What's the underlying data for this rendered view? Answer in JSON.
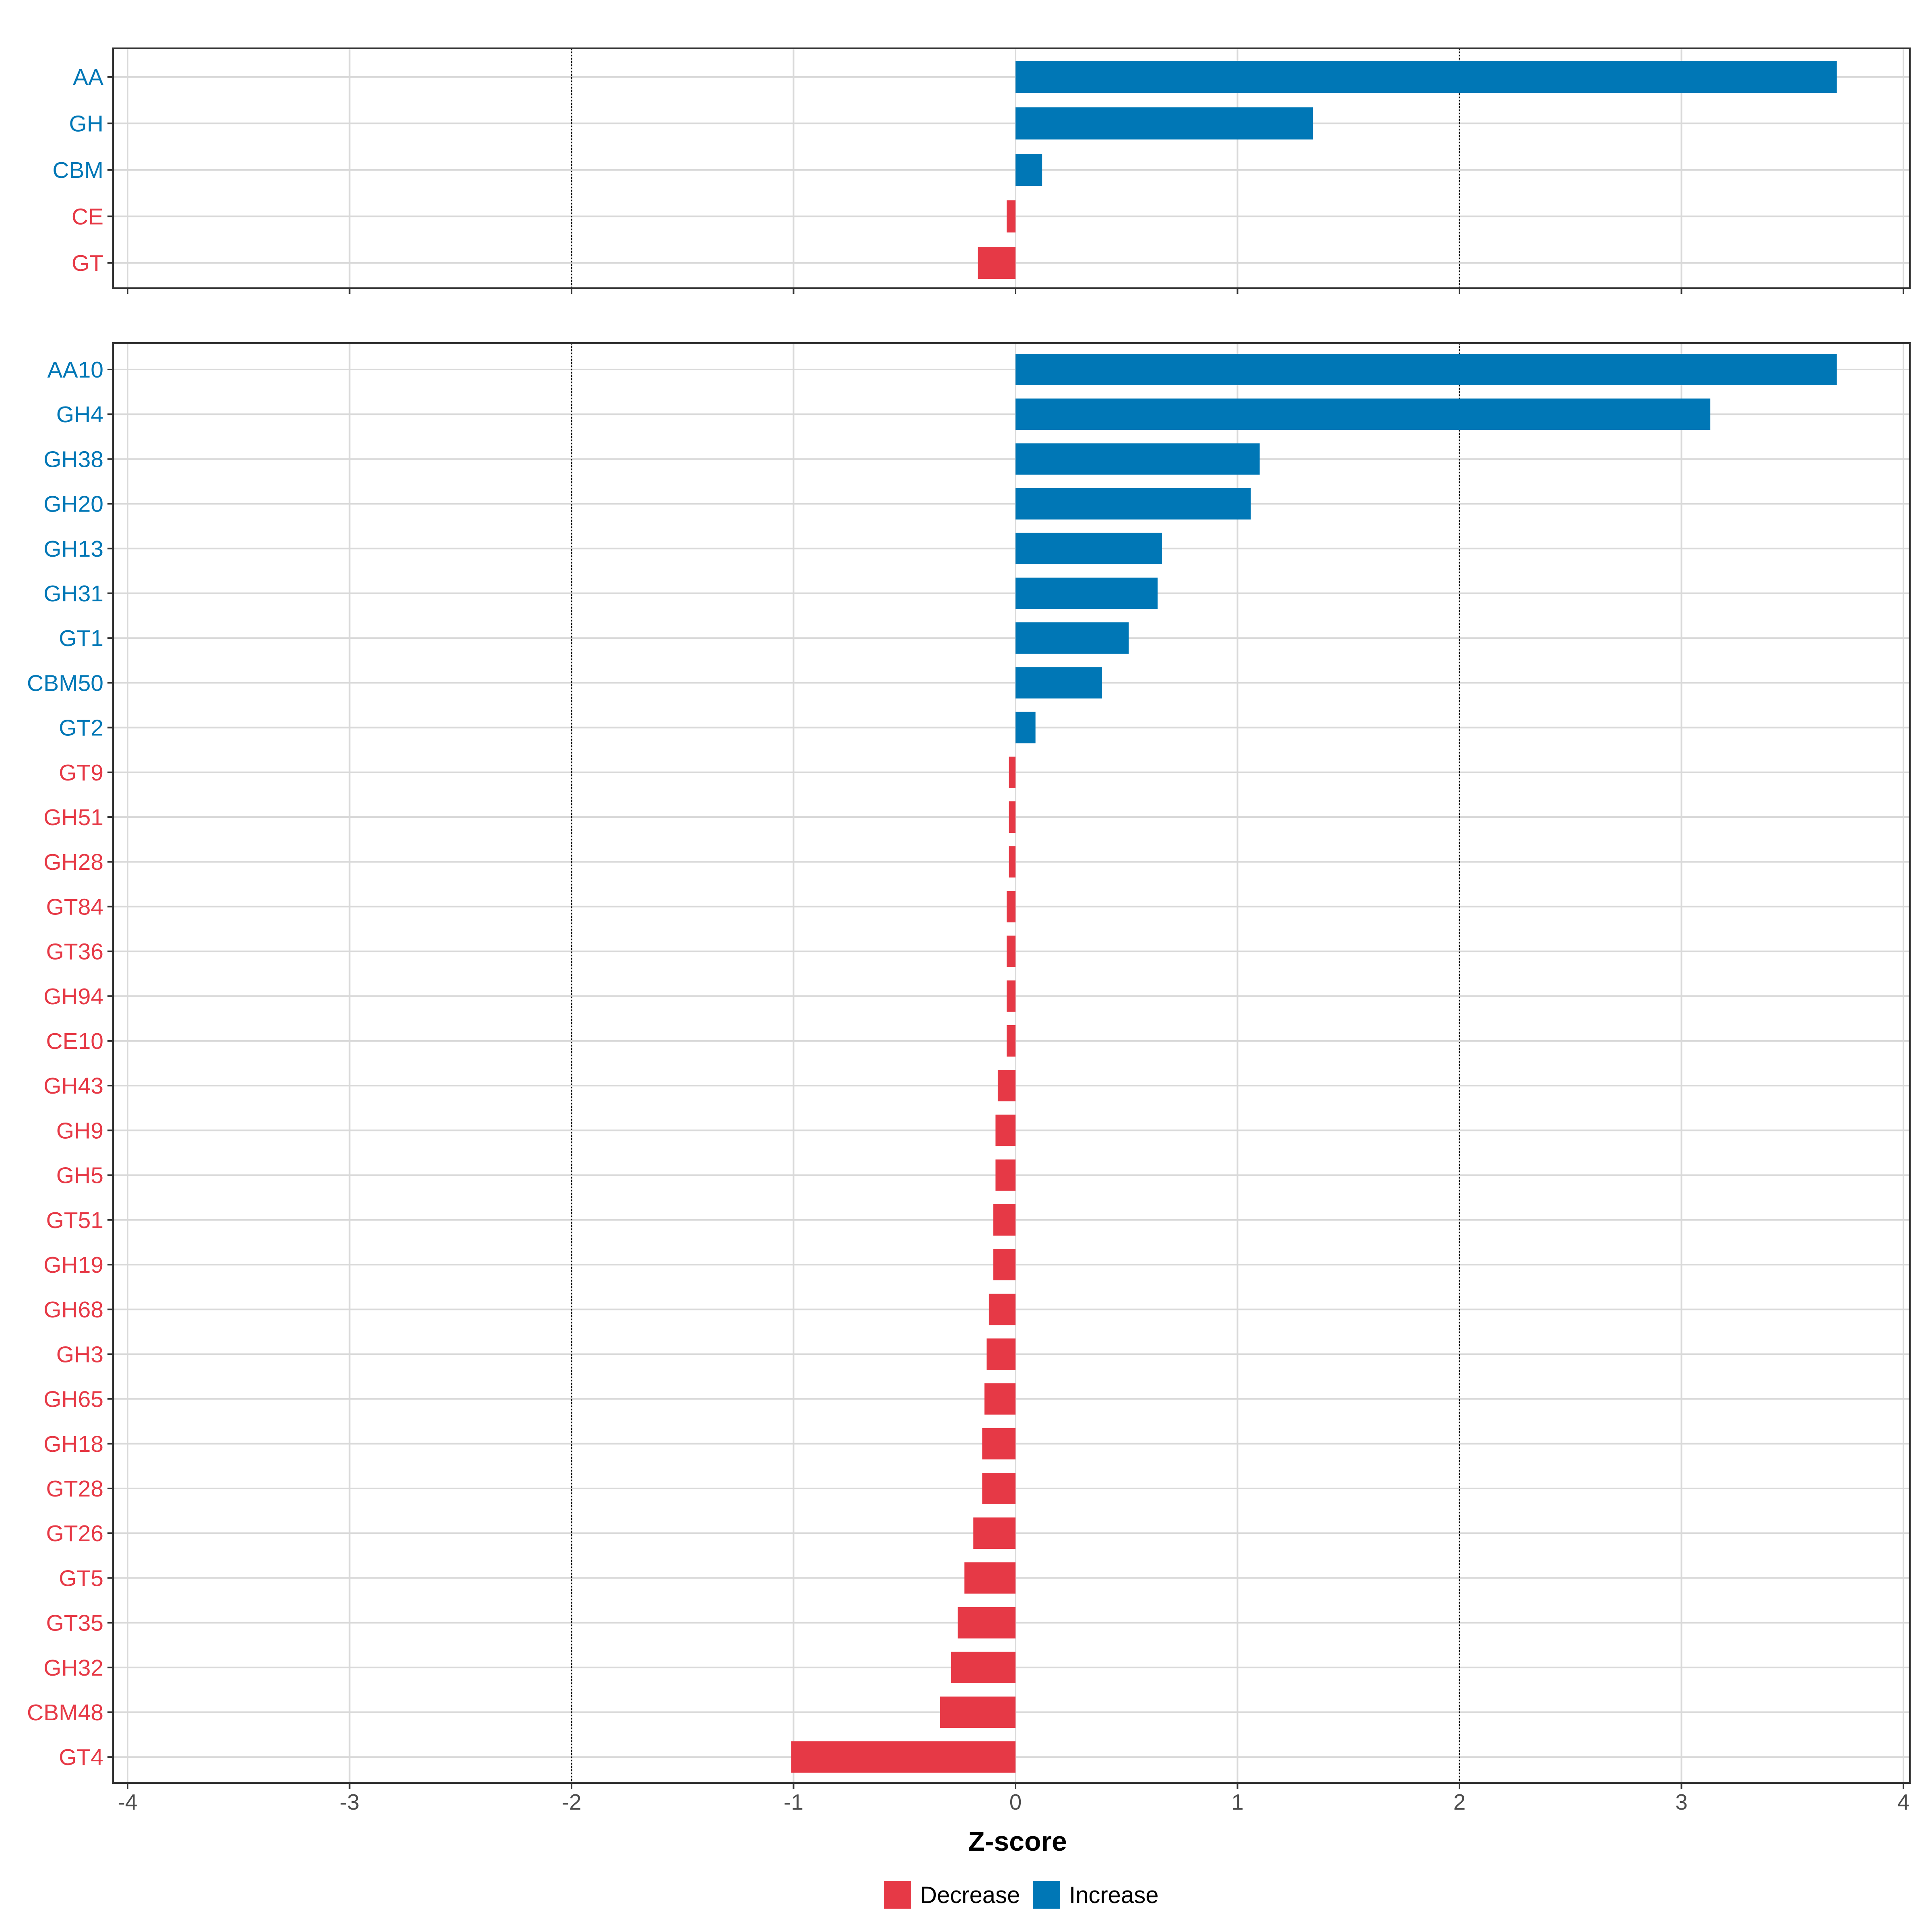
{
  "colors": {
    "increase": "#0077B6",
    "decrease": "#E63946",
    "grid": "#D9D9D9",
    "axis": "#333333"
  },
  "chart_data": [
    {
      "type": "bar",
      "orientation": "horizontal",
      "panel": "top",
      "categories": [
        "AA",
        "GH",
        "CBM",
        "CE",
        "GT"
      ],
      "values": [
        3.7,
        1.34,
        0.12,
        -0.04,
        -0.17
      ],
      "xlim": [
        -4,
        4
      ],
      "reference_lines": [
        -2,
        2
      ],
      "grid": true
    },
    {
      "type": "bar",
      "orientation": "horizontal",
      "panel": "bottom",
      "categories": [
        "AA10",
        "GH4",
        "GH38",
        "GH20",
        "GH13",
        "GH31",
        "GT1",
        "CBM50",
        "GT2",
        "GT9",
        "GH51",
        "GH28",
        "GT84",
        "GT36",
        "GH94",
        "CE10",
        "GH43",
        "GH9",
        "GH5",
        "GT51",
        "GH19",
        "GH68",
        "GH3",
        "GH65",
        "GH18",
        "GT28",
        "GT26",
        "GT5",
        "GT35",
        "GH32",
        "CBM48",
        "GT4"
      ],
      "values": [
        3.7,
        3.13,
        1.1,
        1.06,
        0.66,
        0.64,
        0.51,
        0.39,
        0.09,
        -0.03,
        -0.03,
        -0.03,
        -0.04,
        -0.04,
        -0.04,
        -0.04,
        -0.08,
        -0.09,
        -0.09,
        -0.1,
        -0.1,
        -0.12,
        -0.13,
        -0.14,
        -0.15,
        -0.15,
        -0.19,
        -0.23,
        -0.26,
        -0.29,
        -0.34,
        -1.01
      ],
      "xlim": [
        -4,
        4
      ],
      "reference_lines": [
        -2,
        2
      ],
      "grid": true
    }
  ],
  "axis": {
    "xlabel": "Z-score",
    "ticks": [
      -4,
      -3,
      -2,
      -1,
      0,
      1,
      2,
      3,
      4
    ],
    "tick_labels": [
      "-4",
      "-3",
      "-2",
      "-1",
      "0",
      "1",
      "2",
      "3",
      "4"
    ]
  },
  "legend": {
    "position": "bottom",
    "items": [
      {
        "label": "Decrease",
        "key": "decrease"
      },
      {
        "label": "Increase",
        "key": "increase"
      }
    ]
  }
}
